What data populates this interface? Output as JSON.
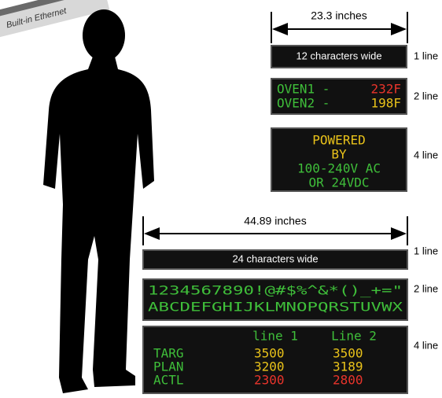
{
  "banner": "Built-in Ethernet",
  "small_sign": {
    "width_label": "23.3 inches",
    "one_line": {
      "text": "12 characters wide",
      "caption": "1 line"
    },
    "two_line": {
      "rows": [
        {
          "label": "OVEN1 -",
          "value": "232F"
        },
        {
          "label": "OVEN2 -",
          "value": "198F"
        }
      ],
      "caption": "2 line"
    },
    "four_line": {
      "lines": [
        "POWERED",
        "BY",
        "100-240V AC",
        "OR 24VDC"
      ],
      "caption": "4 line"
    }
  },
  "large_sign": {
    "width_label": "44.89 inches",
    "one_line": {
      "text": "24 characters wide",
      "caption": "1 line"
    },
    "two_line": {
      "lines": [
        "1234567890!@#$%^&*()_+=\"",
        "ABCDEFGHIJKLMNOPQRSTUVWX"
      ],
      "caption": "2 line"
    },
    "four_line": {
      "headers": [
        "line 1",
        "Line 2"
      ],
      "rows": [
        [
          "TARG",
          "3500",
          "3500"
        ],
        [
          "PLAN",
          "3200",
          "3189"
        ],
        [
          "ACTL",
          "2300",
          "2800"
        ]
      ],
      "caption": "4 line"
    }
  }
}
